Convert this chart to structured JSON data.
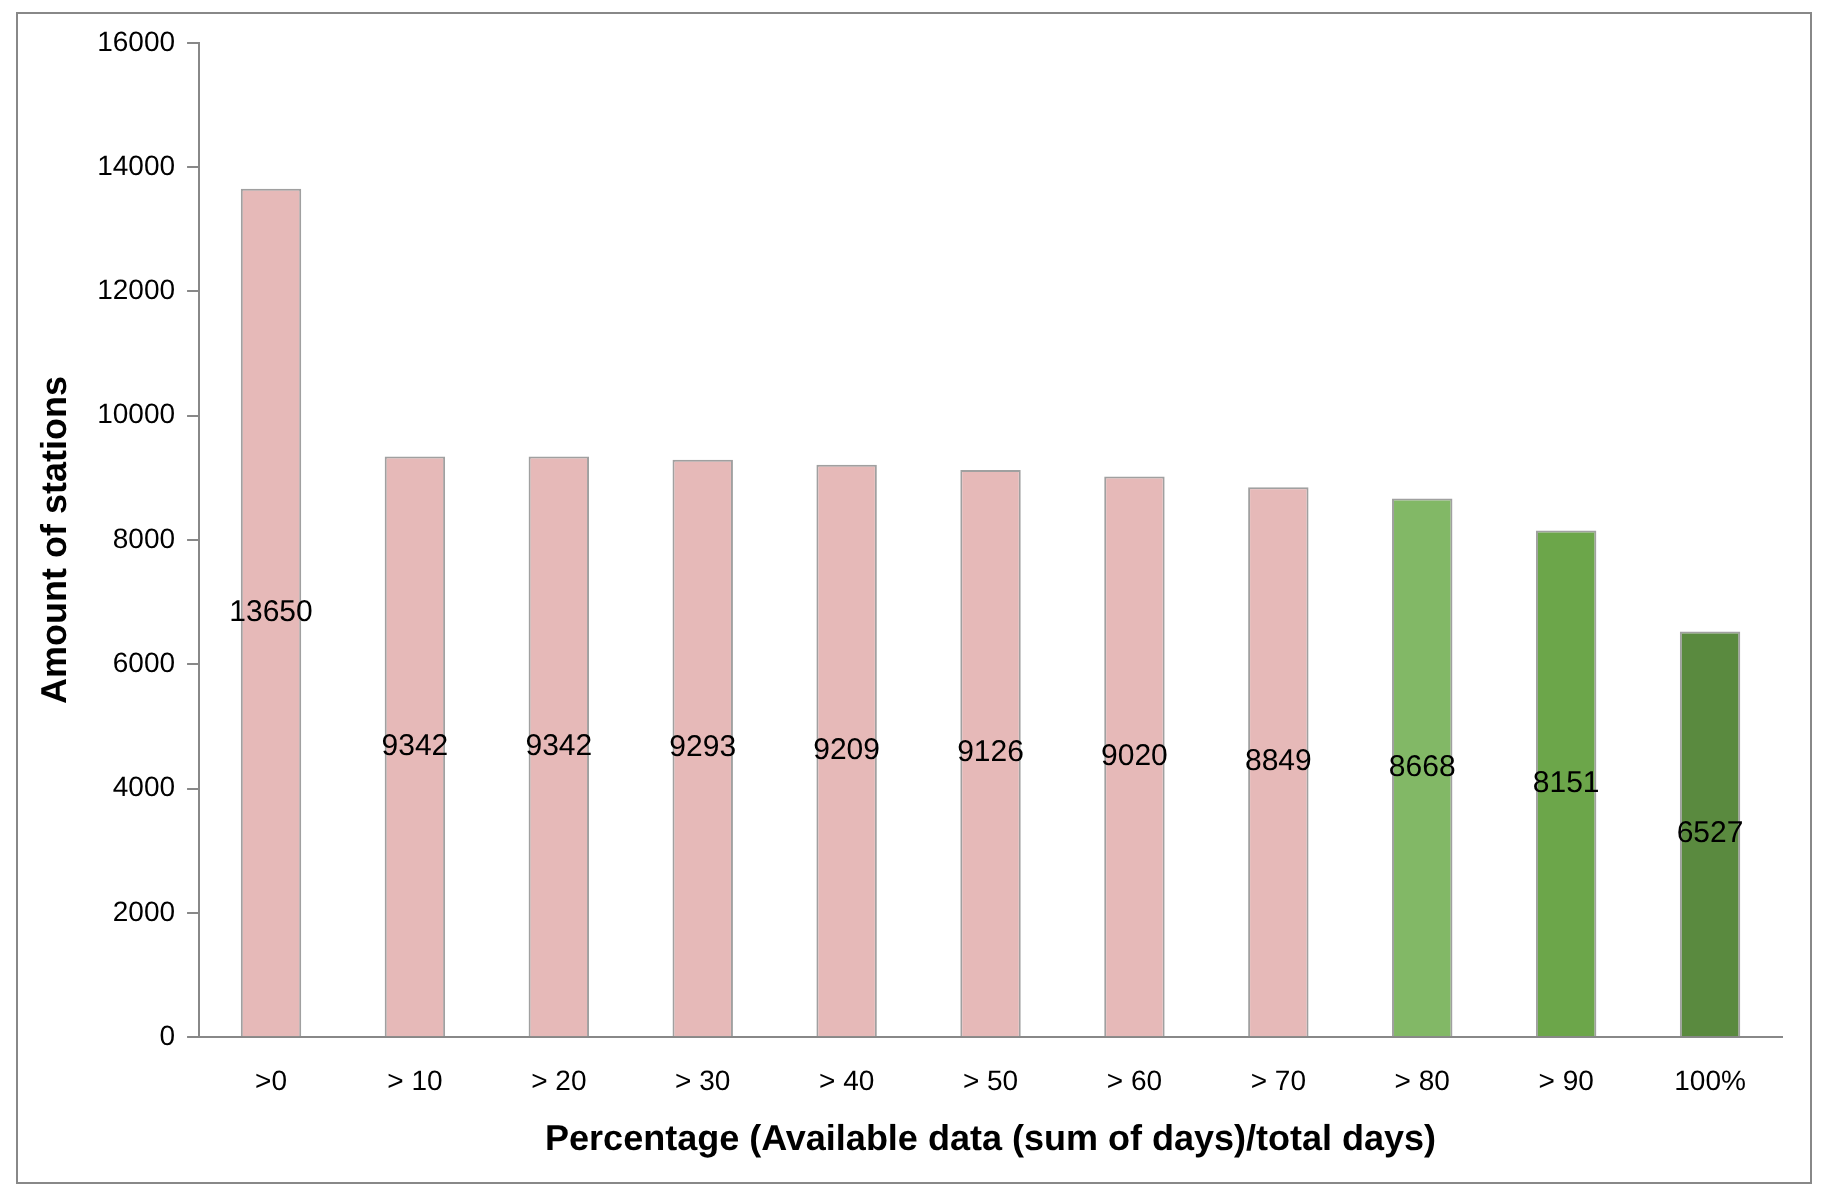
{
  "chart_data": {
    "type": "bar",
    "xlabel": "Percentage (Available data (sum of days)/total days)",
    "ylabel": "Amount of stations",
    "categories": [
      ">0",
      "> 10",
      "> 20",
      "> 30",
      "> 40",
      "> 50",
      "> 60",
      "> 70",
      "> 80",
      "> 90",
      "100%"
    ],
    "values": [
      13650,
      9342,
      9342,
      9293,
      9209,
      9126,
      9020,
      8849,
      8668,
      8151,
      6527
    ],
    "colors": [
      "#e6b9b8",
      "#e6b9b8",
      "#e6b9b8",
      "#e6b9b8",
      "#e6b9b8",
      "#e6b9b8",
      "#e6b9b8",
      "#e6b9b8",
      "#82b866",
      "#6ca64a",
      "#5a8a3f"
    ],
    "ylim": [
      0,
      16000
    ],
    "yticks": [
      0,
      2000,
      4000,
      6000,
      8000,
      10000,
      12000,
      14000,
      16000
    ],
    "grid": false,
    "legend": false,
    "data_labels": true
  }
}
